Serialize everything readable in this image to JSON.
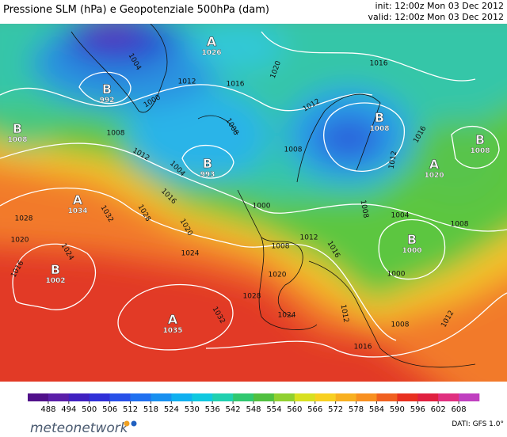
{
  "header": {
    "title": "Pressione SLM (hPa) e Geopotenziale 500hPa (dam)",
    "init": "init: 12:00z Mon 03 Dec 2012",
    "valid": "valid: 12:00z Mon 03 Dec 2012"
  },
  "centers": [
    {
      "letter": "B",
      "value": "992"
    },
    {
      "letter": "B",
      "value": "1008"
    },
    {
      "letter": "A",
      "value": "1026"
    },
    {
      "letter": "B",
      "value": "993"
    },
    {
      "letter": "A",
      "value": "1034"
    },
    {
      "letter": "B",
      "value": "1002"
    },
    {
      "letter": "A",
      "value": "1035"
    },
    {
      "letter": "B",
      "value": "1008"
    },
    {
      "letter": "B",
      "value": "1008"
    },
    {
      "letter": "A",
      "value": "1020"
    },
    {
      "letter": "B",
      "value": "1000"
    }
  ],
  "isobar_labels": [
    "1004",
    "1000",
    "1012",
    "1016",
    "1020",
    "1016",
    "1012",
    "1008",
    "1012",
    "1004",
    "1008",
    "1016",
    "1020",
    "1028",
    "1032",
    "1028",
    "1020",
    "1024",
    "1016",
    "1024",
    "1020",
    "1028",
    "1032",
    "1024",
    "1000",
    "1008",
    "1012",
    "1016",
    "1008",
    "1012",
    "1016",
    "1008",
    "1004",
    "1008",
    "1000",
    "1012",
    "1008",
    "1012",
    "1016"
  ],
  "colorbar": {
    "ticks": [
      488,
      494,
      500,
      506,
      512,
      518,
      524,
      530,
      536,
      542,
      548,
      554,
      560,
      566,
      572,
      578,
      584,
      590,
      596,
      602,
      608
    ]
  },
  "footer": {
    "brand": "meteonetwork",
    "source": "DATI: GFS 1.0°"
  }
}
